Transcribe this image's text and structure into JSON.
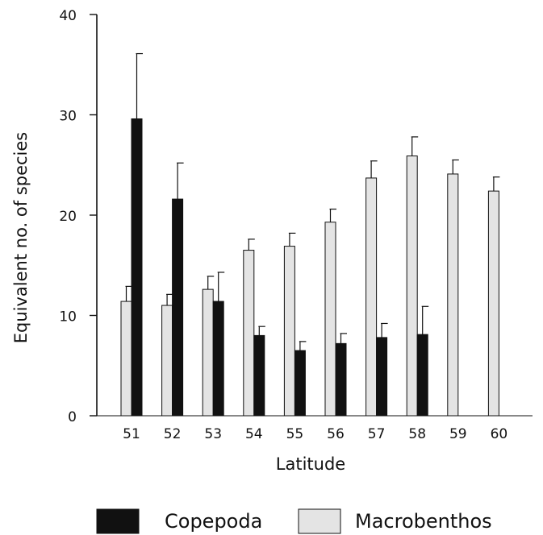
{
  "chart_data": {
    "type": "bar",
    "title": "",
    "xlabel": "Latitude",
    "ylabel": "Equivalent  no.  of  species",
    "ylim": [
      0,
      40
    ],
    "yticks": [
      "0",
      "10",
      "20",
      "30",
      "40"
    ],
    "categories": [
      "51",
      "52",
      "53",
      "54",
      "55",
      "56",
      "57",
      "58",
      "59",
      "60"
    ],
    "series": [
      {
        "name": "Macrobenthos",
        "color": "#e4e4e4",
        "values": [
          11.4,
          11.0,
          12.6,
          16.5,
          16.9,
          19.3,
          23.7,
          25.9,
          24.1,
          22.4
        ],
        "error": [
          1.5,
          1.1,
          1.3,
          1.1,
          1.3,
          1.3,
          1.7,
          1.9,
          1.4,
          1.4
        ]
      },
      {
        "name": "Copepoda",
        "color": "#111111",
        "values": [
          29.6,
          21.6,
          11.4,
          8.0,
          6.5,
          7.2,
          7.8,
          8.1,
          null,
          null
        ],
        "error": [
          6.5,
          3.6,
          2.9,
          0.9,
          0.9,
          1.0,
          1.4,
          2.8,
          null,
          null
        ]
      }
    ],
    "grid": false,
    "legend_position": "bottom"
  }
}
